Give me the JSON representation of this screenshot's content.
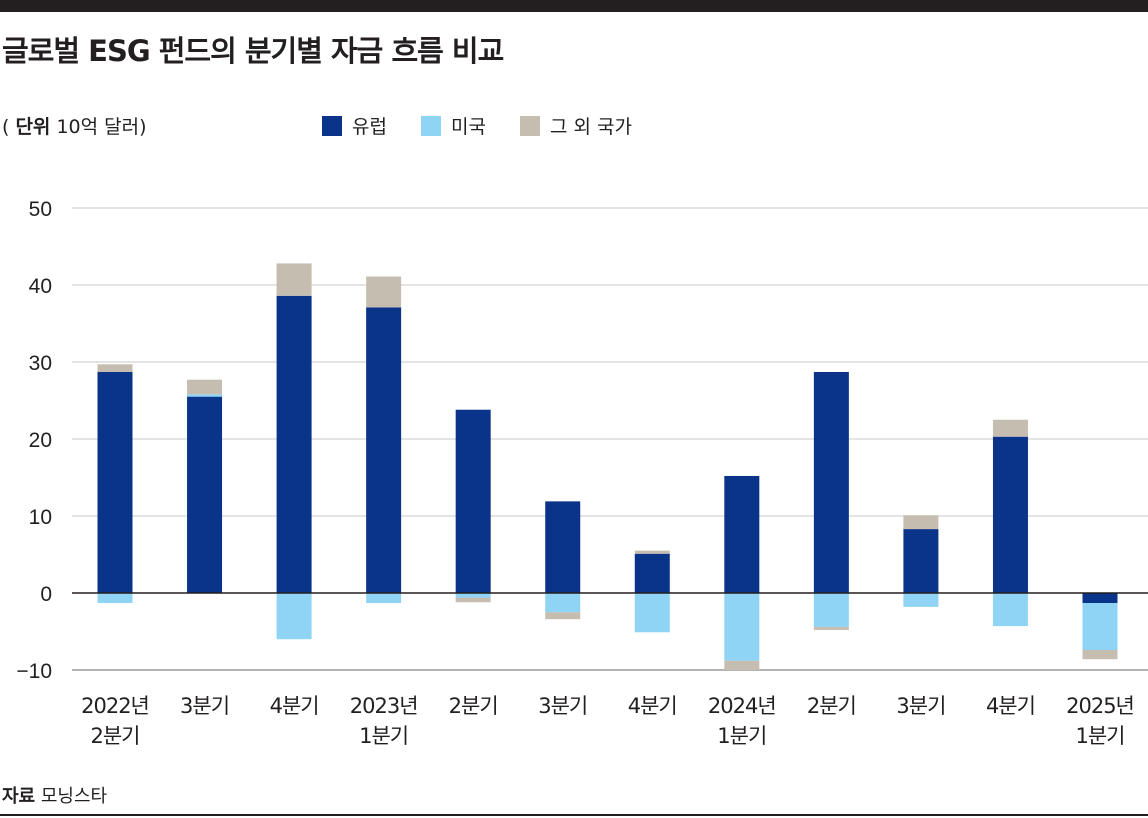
{
  "title": "글로벌 ESG 펀드의 분기별 자금 흐름 비교",
  "unit": {
    "label": "단위",
    "value": "10억 달러"
  },
  "source": {
    "label": "자료",
    "value": "모닝스타"
  },
  "chart_data": {
    "type": "bar",
    "stacked": true,
    "title": "글로벌 ESG 펀드의 분기별 자금 흐름 비교",
    "ylabel": "단위 10억 달러",
    "ylim": [
      -10,
      50
    ],
    "yticks": [
      50,
      40,
      30,
      20,
      10,
      0,
      -10
    ],
    "ytick_labels": [
      "50",
      "40",
      "30",
      "20",
      "10",
      "0",
      "−10"
    ],
    "legend_position": "top",
    "categories": [
      [
        "2022년",
        "2분기"
      ],
      [
        "3분기"
      ],
      [
        "4분기"
      ],
      [
        "2023년",
        "1분기"
      ],
      [
        "2분기"
      ],
      [
        "3분기"
      ],
      [
        "4분기"
      ],
      [
        "2024년",
        "1분기"
      ],
      [
        "2분기"
      ],
      [
        "3분기"
      ],
      [
        "4분기"
      ],
      [
        "2025년",
        "1분기"
      ]
    ],
    "series": [
      {
        "name": "유럽",
        "color": "#0a338a",
        "values": [
          28.7,
          25.5,
          38.6,
          37.1,
          23.8,
          11.9,
          5.1,
          15.2,
          28.7,
          8.3,
          20.3,
          -1.3
        ]
      },
      {
        "name": "미국",
        "color": "#8fd3f5",
        "values": [
          -1.3,
          0.3,
          -6.0,
          -1.3,
          -0.6,
          -2.5,
          -5.1,
          -8.8,
          -4.4,
          -1.8,
          -4.3,
          -6.1
        ]
      },
      {
        "name": "그 외 국가",
        "color": "#c4bdb0",
        "values": [
          1.0,
          1.9,
          4.2,
          4.0,
          -0.6,
          -0.9,
          0.4,
          -1.2,
          -0.4,
          1.8,
          2.2,
          -1.2
        ]
      }
    ]
  }
}
